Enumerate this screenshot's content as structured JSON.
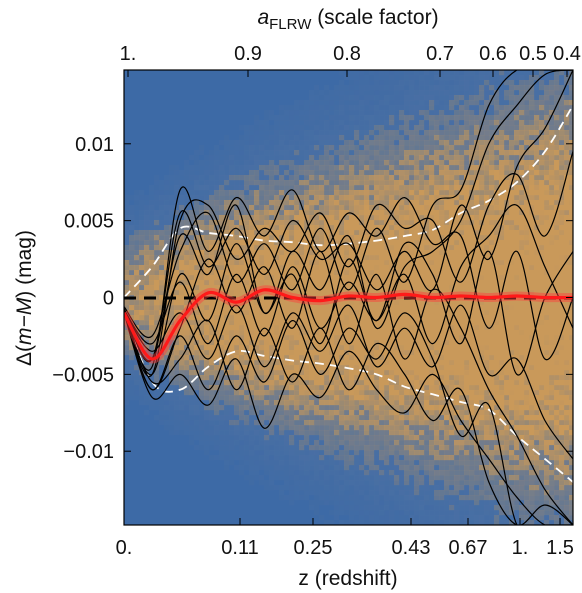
{
  "chart_data": {
    "type": "line",
    "top_axis_title_main": "a",
    "top_axis_title_sub": "FLRW",
    "top_axis_title_rest": " (scale factor)",
    "xlabel": "z (redshift)",
    "ylabel_prefix": "Δ(",
    "ylabel_italic": "m−M",
    "ylabel_suffix": ") (mag)",
    "ylim": [
      -0.0148,
      0.0148
    ],
    "x_ticks": [
      "0.",
      "0.11",
      "0.25",
      "0.43",
      "0.67",
      "1.",
      "1.5"
    ],
    "y_ticks": [
      {
        "value": 0.01,
        "label": "0.01"
      },
      {
        "value": 0.005,
        "label": "0.005"
      },
      {
        "value": 0,
        "label": "0"
      },
      {
        "value": -0.005,
        "label": "−0.005"
      },
      {
        "value": -0.01,
        "label": "−0.01"
      }
    ],
    "top_ticks": [
      "1.",
      "0.9",
      "0.8",
      "0.7",
      "0.6",
      "0.5",
      "0.4"
    ],
    "colors": {
      "background": "#3d6aa6",
      "density_hot": "#c79a5e",
      "mean_line": "#ff1a1a",
      "realizations": "#000000",
      "envelope": "#ffffff",
      "zero_line": "#000000"
    },
    "series": [
      {
        "role": "mean",
        "values": [
          -0.001,
          -0.004,
          -0.0015,
          0.0003,
          -0.0003,
          0.0005,
          0.0,
          -0.0002,
          0.0001,
          0.0,
          0.0002,
          0.0,
          0.0001,
          0.0,
          0.0001,
          0.0,
          0.0
        ]
      },
      {
        "role": "envelope-upper",
        "values": [
          0.0,
          0.002,
          0.0045,
          0.0042,
          0.004,
          0.0037,
          0.0036,
          0.0034,
          0.0035,
          0.0037,
          0.004,
          0.0044,
          0.0055,
          0.0063,
          0.0075,
          0.0095,
          0.0125
        ]
      },
      {
        "role": "envelope-lower",
        "values": [
          -0.001,
          -0.0055,
          -0.006,
          -0.0045,
          -0.0035,
          -0.0038,
          -0.0041,
          -0.0043,
          -0.0046,
          -0.005,
          -0.0058,
          -0.0063,
          -0.0068,
          -0.0073,
          -0.009,
          -0.0105,
          -0.012
        ]
      },
      {
        "role": "realization",
        "values": [
          -0.0008,
          -0.005,
          0.005,
          0.006,
          0.0025,
          0.0045,
          0.003,
          0.0055,
          0.002,
          0.006,
          0.0045,
          0.005,
          0.001,
          0.006,
          0.008,
          0.004,
          0.0095
        ]
      },
      {
        "role": "realization",
        "values": [
          -0.0008,
          -0.004,
          0.004,
          0.0015,
          0.006,
          -0.001,
          0.003,
          0.0005,
          0.004,
          -0.002,
          0.002,
          0.003,
          0.005,
          0.01,
          0.0125,
          0.0145,
          0.0148
        ]
      },
      {
        "role": "realization",
        "values": [
          -0.0009,
          -0.006,
          -0.002,
          0.0025,
          -0.001,
          0.002,
          -0.002,
          0.003,
          -0.003,
          0.0015,
          -0.004,
          0.0005,
          -0.002,
          -0.006,
          -0.009,
          -0.0125,
          -0.0148
        ]
      },
      {
        "role": "realization",
        "values": [
          -0.0007,
          -0.0045,
          0.007,
          0.003,
          0.0065,
          0.004,
          0.007,
          0.003,
          0.0055,
          0.004,
          0.0065,
          0.0035,
          0.004,
          -0.002,
          0.003,
          -0.004,
          0.0
        ]
      },
      {
        "role": "realization",
        "values": [
          -0.001,
          -0.0065,
          -0.005,
          -0.007,
          -0.004,
          -0.0085,
          -0.005,
          -0.0065,
          -0.0035,
          -0.006,
          -0.0075,
          -0.005,
          -0.008,
          -0.0105,
          -0.013,
          -0.0148,
          -0.0148
        ]
      },
      {
        "role": "realization",
        "values": [
          -0.0008,
          -0.003,
          0.001,
          -0.003,
          0.0015,
          -0.0025,
          0.002,
          -0.002,
          0.001,
          -0.0015,
          0.0015,
          -0.003,
          0.002,
          0.004,
          0.006,
          0.002,
          -0.002
        ]
      },
      {
        "role": "realization",
        "values": [
          -0.0009,
          -0.0055,
          -0.004,
          -0.0015,
          -0.006,
          -0.002,
          -0.0055,
          -0.002,
          -0.006,
          -0.003,
          -0.005,
          -0.008,
          -0.006,
          -0.012,
          -0.0148,
          -0.0135,
          -0.0148
        ]
      },
      {
        "role": "realization",
        "values": [
          -0.0006,
          -0.0025,
          0.003,
          0.0055,
          0.001,
          0.0035,
          0.0005,
          0.0045,
          0.0005,
          0.0045,
          0.001,
          0.006,
          0.007,
          0.0125,
          0.0148,
          0.0148,
          0.0148
        ]
      },
      {
        "role": "realization",
        "values": [
          -0.0008,
          -0.0035,
          -0.001,
          -0.004,
          -0.0005,
          -0.0045,
          -0.001,
          -0.0035,
          -0.0005,
          -0.0045,
          -0.002,
          -0.0045,
          -0.0005,
          -0.005,
          -0.004,
          -0.008,
          -0.0105
        ]
      },
      {
        "role": "realization",
        "values": [
          -0.0007,
          -0.004,
          0.0055,
          0.002,
          0.0045,
          0.0015,
          0.005,
          0.0025,
          0.0035,
          0.0005,
          0.003,
          0.0005,
          0.006,
          0.0025,
          0.0085,
          0.011,
          0.0148
        ]
      },
      {
        "role": "realization",
        "values": [
          -0.0009,
          -0.006,
          -0.0025,
          -0.006,
          -0.0025,
          -0.0055,
          -0.0015,
          -0.005,
          -0.002,
          -0.004,
          -0.001,
          -0.004,
          -0.009,
          -0.007,
          -0.0148,
          -0.0148,
          -0.0148
        ]
      },
      {
        "role": "realization",
        "values": [
          -0.0008,
          -0.005,
          0.0015,
          -0.0015,
          0.0035,
          -0.001,
          0.0015,
          -0.003,
          0.0025,
          -0.0015,
          0.0035,
          0.0015,
          -0.003,
          0.003,
          -0.005,
          0.0,
          0.003
        ]
      }
    ]
  }
}
